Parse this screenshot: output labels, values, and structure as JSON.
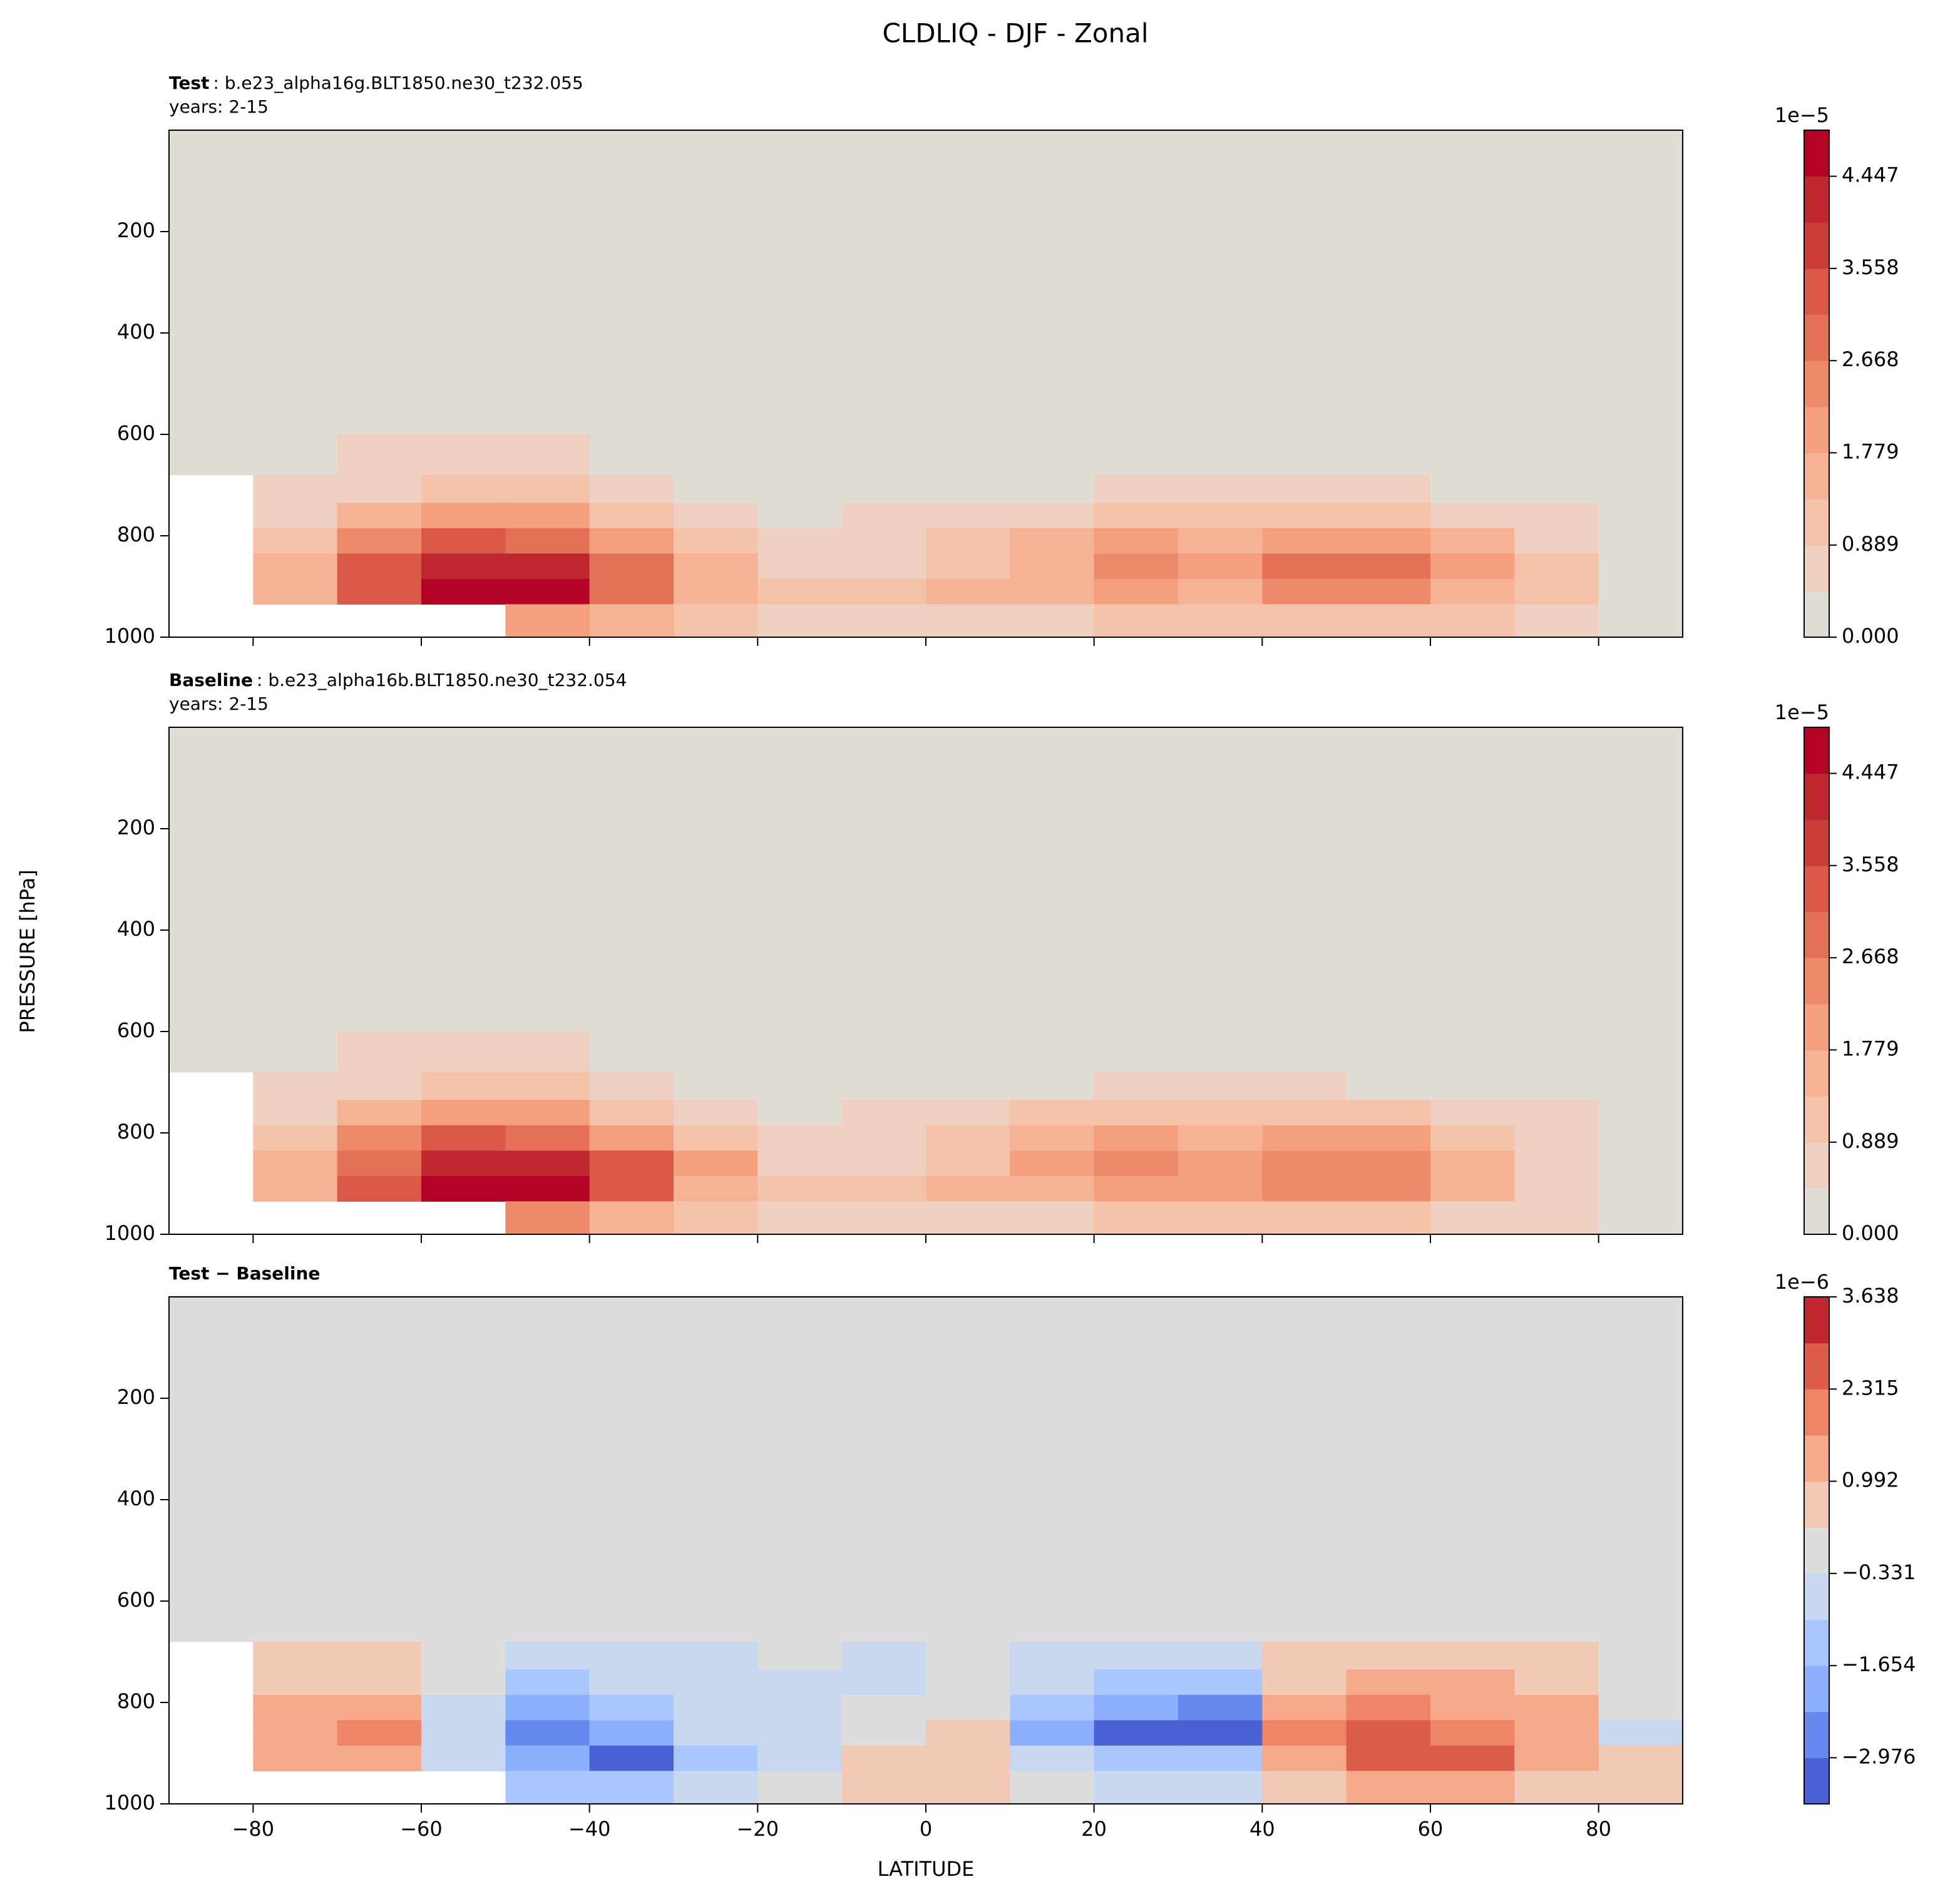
{
  "title": "CLDLIQ - DJF - Zonal",
  "xlabel": "LATITUDE",
  "ylabel": "PRESSURE [hPa]",
  "chart_data": [
    {
      "type": "contour",
      "label": "Test",
      "case": ": b.e23_alpha16g.BLT1850.ne30_t232.055",
      "years": "years: 2-15",
      "xlim": [
        -90,
        90
      ],
      "xticks": [
        {
          "value": -80,
          "label": "−80"
        },
        {
          "value": -60,
          "label": "−60"
        },
        {
          "value": -40,
          "label": "−40"
        },
        {
          "value": -20,
          "label": "−20"
        },
        0,
        20,
        40,
        60,
        80
      ],
      "ylim": [
        0,
        1000
      ],
      "yinvert": true,
      "yticks": [
        200,
        400,
        600,
        800,
        1000
      ],
      "x": [
        -85,
        -75,
        -65,
        -55,
        -45,
        -35,
        -25,
        -15,
        -5,
        5,
        15,
        25,
        35,
        45,
        55,
        65,
        75,
        85
      ],
      "y": [
        250,
        550,
        650,
        710,
        760,
        810,
        860,
        910,
        960
      ],
      "z": [
        [
          0,
          0,
          0,
          0,
          0,
          0,
          0,
          0,
          0,
          0,
          0,
          0,
          0,
          0,
          0,
          0,
          0,
          0
        ],
        [
          0,
          0,
          0,
          0,
          0,
          0,
          0,
          0,
          0,
          0,
          0,
          0,
          0,
          0,
          0,
          0,
          0,
          0
        ],
        [
          0,
          0,
          0.5,
          0.6,
          0.6,
          0.3,
          0,
          0,
          0,
          0,
          0,
          0,
          0,
          0,
          0,
          0,
          0,
          0
        ],
        [
          null,
          0.5,
          0.8,
          1.0,
          0.9,
          0.5,
          0.2,
          0,
          0,
          0.2,
          0.3,
          0.5,
          0.5,
          0.5,
          0.5,
          0.4,
          0.2,
          0
        ],
        [
          null,
          0.7,
          1.6,
          2.0,
          1.8,
          1.2,
          0.6,
          0.3,
          0.5,
          0.7,
          0.8,
          1.0,
          1.0,
          1.1,
          1.1,
          0.8,
          0.5,
          0.2
        ],
        [
          null,
          1.2,
          2.6,
          3.2,
          3.0,
          2.2,
          1.2,
          0.5,
          0.7,
          1.0,
          1.5,
          1.8,
          1.5,
          2.0,
          2.0,
          1.4,
          0.7,
          0.3
        ],
        [
          null,
          1.6,
          3.2,
          4.3,
          4.2,
          3.1,
          1.7,
          0.6,
          0.8,
          1.2,
          1.7,
          2.3,
          1.9,
          2.7,
          2.8,
          1.8,
          0.9,
          0.3
        ],
        [
          null,
          1.5,
          3.4,
          4.8,
          4.6,
          3.0,
          1.5,
          0.9,
          1.0,
          1.5,
          1.6,
          1.8,
          1.7,
          2.4,
          2.6,
          1.7,
          0.9,
          0.3
        ],
        [
          null,
          null,
          null,
          null,
          2.2,
          1.5,
          1.0,
          0.7,
          0.5,
          0.7,
          0.8,
          1.0,
          1.0,
          1.2,
          1.3,
          0.9,
          0.5,
          0.2
        ]
      ],
      "levels": [
        0,
        0.4447,
        0.8894,
        1.3341,
        1.7788,
        2.2235,
        2.6682,
        3.1129,
        3.5576,
        4.0023,
        4.447,
        4.8917
      ],
      "colors": [
        "#e2dcd7",
        "#efcfbf",
        "#f5c2aa",
        "#f6b294",
        "#f4a07f",
        "#ee8a6c",
        "#e57058",
        "#d95847",
        "#cb3e38",
        "#c0282f",
        "#b40426"
      ],
      "cbar_offset": "1e−5",
      "cbar_ticks": [
        {
          "value": 0,
          "label": "0.000"
        },
        0.889,
        1.779,
        2.668,
        3.558,
        4.447
      ]
    },
    {
      "type": "contour",
      "label": "Baseline",
      "case": ": b.e23_alpha16b.BLT1850.ne30_t232.054",
      "years": "years: 2-15",
      "xlim": [
        -90,
        90
      ],
      "xticks": [
        {
          "value": -80,
          "label": "−80"
        },
        {
          "value": -60,
          "label": "−60"
        },
        {
          "value": -40,
          "label": "−40"
        },
        {
          "value": -20,
          "label": "−20"
        },
        0,
        20,
        40,
        60,
        80
      ],
      "ylim": [
        0,
        1000
      ],
      "yinvert": true,
      "yticks": [
        200,
        400,
        600,
        800,
        1000
      ],
      "x": [
        -85,
        -75,
        -65,
        -55,
        -45,
        -35,
        -25,
        -15,
        -5,
        5,
        15,
        25,
        35,
        45,
        55,
        65,
        75,
        85
      ],
      "y": [
        250,
        550,
        650,
        710,
        760,
        810,
        860,
        910,
        960
      ],
      "z": [
        [
          0,
          0,
          0,
          0,
          0,
          0,
          0,
          0,
          0,
          0,
          0,
          0,
          0,
          0,
          0,
          0,
          0,
          0
        ],
        [
          0,
          0,
          0,
          0,
          0,
          0,
          0,
          0,
          0,
          0,
          0,
          0,
          0,
          0,
          0,
          0,
          0,
          0
        ],
        [
          0,
          0,
          0.5,
          0.6,
          0.6,
          0.3,
          0,
          0,
          0,
          0,
          0,
          0,
          0,
          0,
          0,
          0,
          0,
          0
        ],
        [
          null,
          0.5,
          0.8,
          1.0,
          0.9,
          0.5,
          0.2,
          0,
          0,
          0.2,
          0.3,
          0.5,
          0.5,
          0.5,
          0.4,
          0.4,
          0.2,
          0
        ],
        [
          null,
          0.7,
          1.5,
          2.0,
          1.9,
          1.2,
          0.6,
          0.3,
          0.5,
          0.7,
          0.9,
          1.1,
          1.1,
          1.0,
          1.0,
          0.7,
          0.5,
          0.2
        ],
        [
          null,
          1.1,
          2.4,
          3.3,
          3.1,
          2.2,
          1.2,
          0.5,
          0.6,
          1.0,
          1.6,
          2.0,
          1.7,
          1.8,
          1.8,
          1.3,
          0.6,
          0.3
        ],
        [
          null,
          1.5,
          3.0,
          4.4,
          4.4,
          3.2,
          1.8,
          0.6,
          0.7,
          1.2,
          1.9,
          2.6,
          2.2,
          2.4,
          2.5,
          1.6,
          0.8,
          0.3
        ],
        [
          null,
          1.4,
          3.2,
          4.9,
          4.8,
          3.3,
          1.6,
          0.9,
          1.0,
          1.4,
          1.7,
          1.9,
          1.8,
          2.3,
          2.3,
          1.4,
          0.8,
          0.3
        ],
        [
          null,
          null,
          null,
          null,
          2.3,
          1.6,
          1.0,
          0.7,
          0.5,
          0.6,
          0.8,
          1.0,
          1.0,
          1.1,
          1.2,
          0.8,
          0.5,
          0.2
        ]
      ],
      "levels": [
        0,
        0.4447,
        0.8894,
        1.3341,
        1.7788,
        2.2235,
        2.6682,
        3.1129,
        3.5576,
        4.0023,
        4.447,
        4.8917
      ],
      "colors": [
        "#e2dcd7",
        "#efcfbf",
        "#f5c2aa",
        "#f6b294",
        "#f4a07f",
        "#ee8a6c",
        "#e57058",
        "#d95847",
        "#cb3e38",
        "#c0282f",
        "#b40426"
      ],
      "cbar_offset": "1e−5",
      "cbar_ticks": [
        {
          "value": 0,
          "label": "0.000"
        },
        0.889,
        1.779,
        2.668,
        3.558,
        4.447
      ]
    },
    {
      "type": "contour",
      "label": "Test − Baseline",
      "xlim": [
        -90,
        90
      ],
      "xticks": [
        {
          "value": -80,
          "label": "−80"
        },
        {
          "value": -60,
          "label": "−60"
        },
        {
          "value": -40,
          "label": "−40"
        },
        {
          "value": -20,
          "label": "−20"
        },
        0,
        20,
        40,
        60,
        80
      ],
      "ylim": [
        0,
        1000
      ],
      "yinvert": true,
      "yticks": [
        200,
        400,
        600,
        800,
        1000
      ],
      "x": [
        -85,
        -75,
        -65,
        -55,
        -45,
        -35,
        -25,
        -15,
        -5,
        5,
        15,
        25,
        35,
        45,
        55,
        65,
        75,
        85
      ],
      "y": [
        250,
        550,
        650,
        710,
        760,
        810,
        860,
        910,
        960
      ],
      "z": [
        [
          0,
          0,
          0,
          0,
          0,
          0,
          0,
          0,
          0,
          0,
          0,
          0,
          0,
          0,
          0,
          0,
          0,
          0
        ],
        [
          0,
          0,
          0,
          0,
          0,
          0,
          0,
          0,
          0,
          0,
          0,
          0,
          0,
          0,
          0,
          0,
          0,
          0
        ],
        [
          0,
          0,
          0,
          0,
          0,
          0,
          0,
          0,
          0,
          0,
          0,
          0,
          0,
          0,
          0,
          0,
          0,
          0
        ],
        [
          null,
          0.5,
          0.4,
          0,
          -0.6,
          -0.5,
          -0.4,
          0,
          -0.4,
          0,
          -0.5,
          -0.7,
          -0.7,
          0.5,
          0.8,
          0.5,
          0.4,
          0
        ],
        [
          null,
          0.8,
          0.9,
          -0.3,
          -1.2,
          -0.9,
          -0.5,
          -0.4,
          -0.4,
          0,
          -0.8,
          -1.6,
          -1.5,
          0.9,
          1.3,
          1.0,
          0.8,
          0
        ],
        [
          null,
          1.0,
          1.5,
          -0.5,
          -2.0,
          -1.3,
          -0.8,
          -0.4,
          0,
          0.2,
          -1.4,
          -2.3,
          -2.4,
          1.4,
          2.0,
          1.5,
          1.0,
          0
        ],
        [
          null,
          1.2,
          1.8,
          -0.6,
          -2.8,
          -1.8,
          -0.9,
          -0.4,
          0.3,
          0.4,
          -1.8,
          -3.1,
          -3.0,
          2.0,
          2.4,
          1.8,
          1.2,
          -0.4
        ],
        [
          null,
          1.1,
          1.6,
          -0.8,
          -2.3,
          -3.2,
          -1.2,
          -0.5,
          0.6,
          0.9,
          -0.6,
          -1.3,
          -1.5,
          1.3,
          2.8,
          2.9,
          1.6,
          0.5
        ],
        [
          null,
          null,
          null,
          null,
          -1.0,
          -1.2,
          -0.6,
          -0.3,
          0.5,
          0.6,
          -0.3,
          -0.4,
          -0.5,
          0.6,
          1.2,
          1.0,
          0.6,
          0.8
        ]
      ],
      "levels": [
        -3.638,
        -2.9765,
        -2.315,
        -1.6535,
        -0.992,
        -0.3305,
        0.3305,
        0.992,
        1.6535,
        2.315,
        2.9765,
        3.638
      ],
      "colors": [
        "#4961d2",
        "#6788ee",
        "#8db0fe",
        "#aac7fd",
        "#c9d7f0",
        "#dddddd",
        "#f2c9b4",
        "#f5a98a",
        "#ee8468",
        "#dc5d4a",
        "#c0282f"
      ],
      "cbar_offset": "1e−6",
      "cbar_ticks": [
        {
          "value": -2.976,
          "label": "−2.976"
        },
        {
          "value": -1.654,
          "label": "−1.654"
        },
        {
          "value": -0.331,
          "label": "−0.331"
        },
        0.992,
        2.315,
        3.638
      ]
    }
  ]
}
